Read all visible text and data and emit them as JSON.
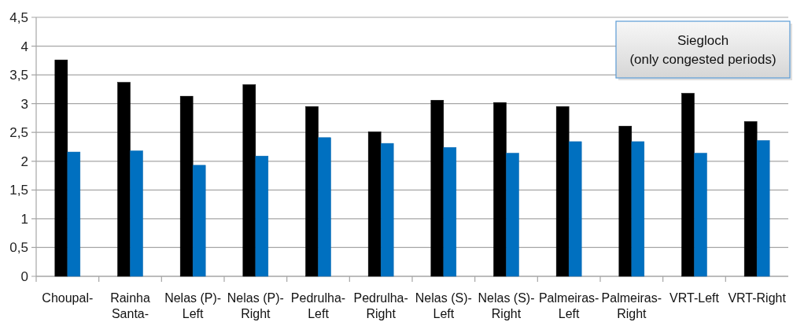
{
  "chart_data": {
    "type": "bar",
    "categories": [
      "Choupal-",
      "Rainha\nSanta-",
      "Nelas (P)-\nLeft",
      "Nelas (P)-\nRight",
      "Pedrulha-\nLeft",
      "Pedrulha-\nRight",
      "Nelas (S)-\nLeft",
      "Nelas (S)-\nRight",
      "Palmeiras-\nLeft",
      "Palmeiras-\nRight",
      "VRT-Left",
      "VRT-Right"
    ],
    "series": [
      {
        "color": "#000000",
        "values": [
          3.76,
          3.37,
          3.13,
          3.33,
          2.95,
          2.51,
          3.06,
          3.02,
          2.95,
          2.61,
          3.18,
          2.69
        ]
      },
      {
        "color": "#0070c0",
        "values": [
          2.16,
          2.18,
          1.93,
          2.09,
          2.41,
          2.31,
          2.24,
          2.14,
          2.34,
          2.34,
          2.14,
          2.36
        ]
      }
    ],
    "ylim": [
      0,
      4.5
    ],
    "yticks": [
      0,
      {
        "value": 0.5,
        "label": "0,5"
      },
      1,
      {
        "value": 1.5,
        "label": "1,5"
      },
      2,
      {
        "value": 2.5,
        "label": "2,5"
      },
      3,
      {
        "value": 3.5,
        "label": "3,5"
      },
      4,
      {
        "value": 4.5,
        "label": "4,5"
      }
    ],
    "grid": "y",
    "annotations": [
      "Siegloch\n(only congested periods)"
    ]
  }
}
